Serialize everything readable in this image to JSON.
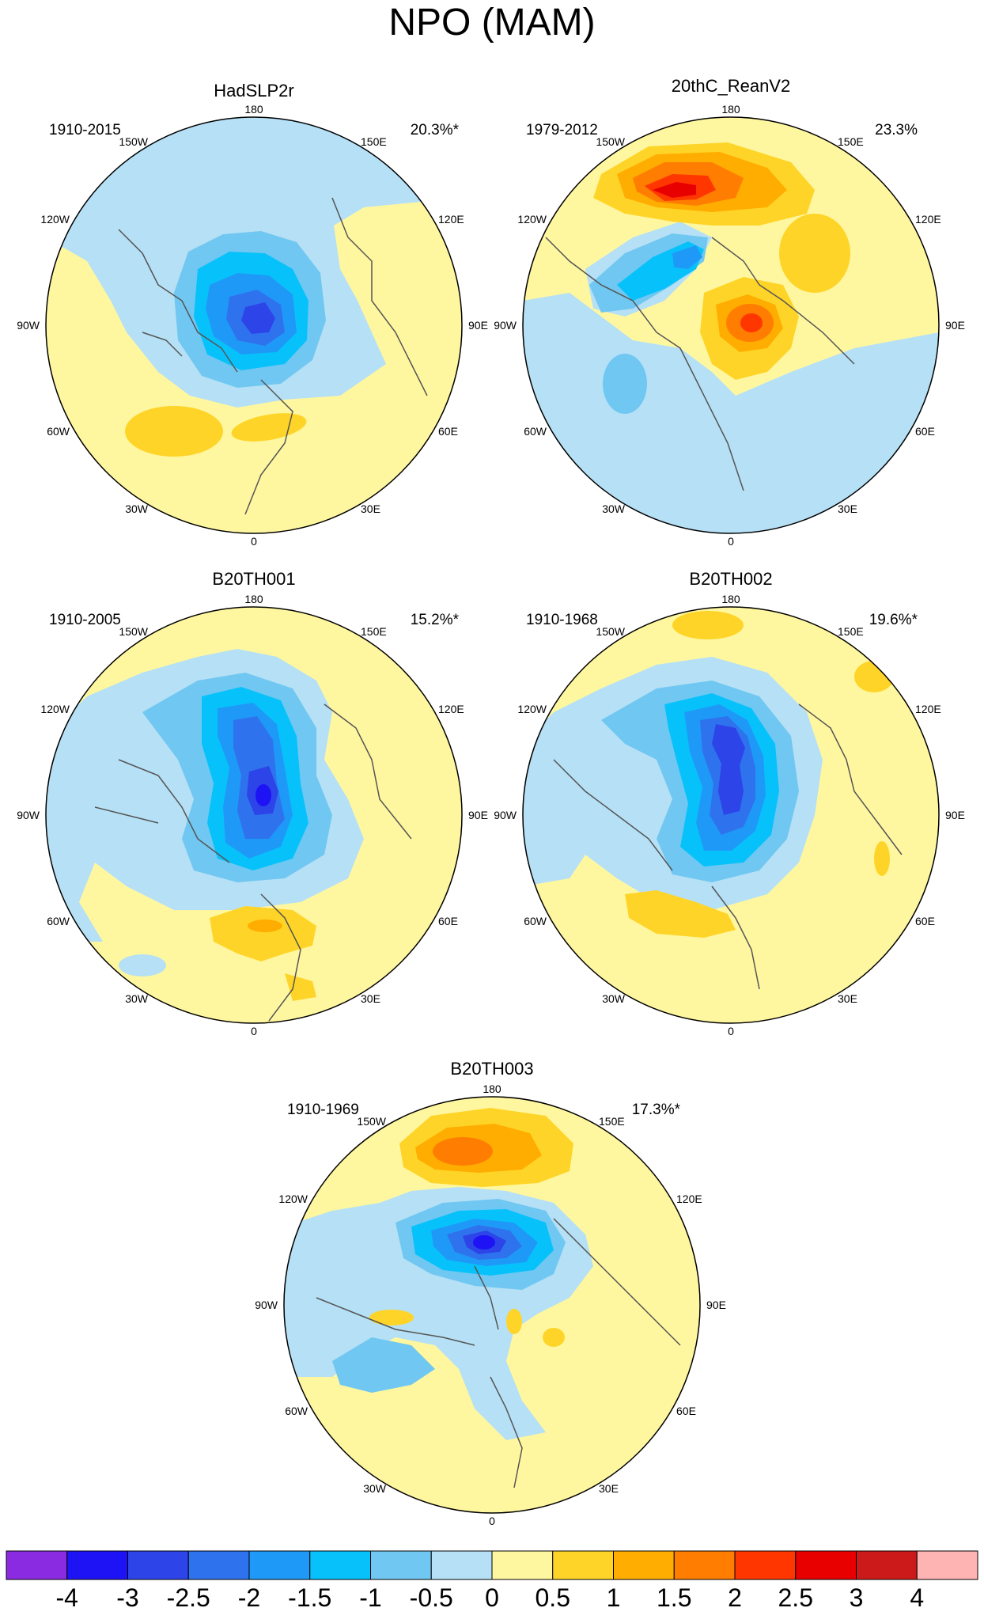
{
  "title": "NPO (MAM)",
  "panels": [
    {
      "id": "p1",
      "name": "HadSLP2r",
      "period": "1910-2015",
      "variance": "20.3%*"
    },
    {
      "id": "p2",
      "name": "20thC_ReanV2",
      "period": "1979-2012",
      "variance": "23.3%"
    },
    {
      "id": "p3",
      "name": "B20TH001",
      "period": "1910-2005",
      "variance": "15.2%*"
    },
    {
      "id": "p4",
      "name": "B20TH002",
      "period": "1910-1968",
      "variance": "19.6%*"
    },
    {
      "id": "p5",
      "name": "B20TH003",
      "period": "1910-1969",
      "variance": "17.3%*"
    }
  ],
  "longitude_labels": {
    "top": "180",
    "bottom": "0",
    "left": "90W",
    "right": "90E",
    "upper_left_1": "150W",
    "upper_left_2": "120W",
    "upper_right_1": "150E",
    "upper_right_2": "120E",
    "lower_left_1": "60W",
    "lower_left_2": "30W",
    "lower_right_1": "60E",
    "lower_right_2": "30E"
  },
  "colorbar": {
    "labels": [
      "-4",
      "-3",
      "-2.5",
      "-2",
      "-1.5",
      "-1",
      "-0.5",
      "0",
      "0.5",
      "1",
      "1.5",
      "2",
      "2.5",
      "3",
      "4"
    ],
    "colors": [
      "#8a2be2",
      "#1e13f5",
      "#2c44e8",
      "#2f72ee",
      "#1f99f7",
      "#07c2fa",
      "#70c7f1",
      "#b5e0f5",
      "#fff7a0",
      "#ffd428",
      "#ffad00",
      "#ff7d00",
      "#ff3600",
      "#e80000",
      "#cc1a1a",
      "#ffb4b4"
    ]
  }
}
